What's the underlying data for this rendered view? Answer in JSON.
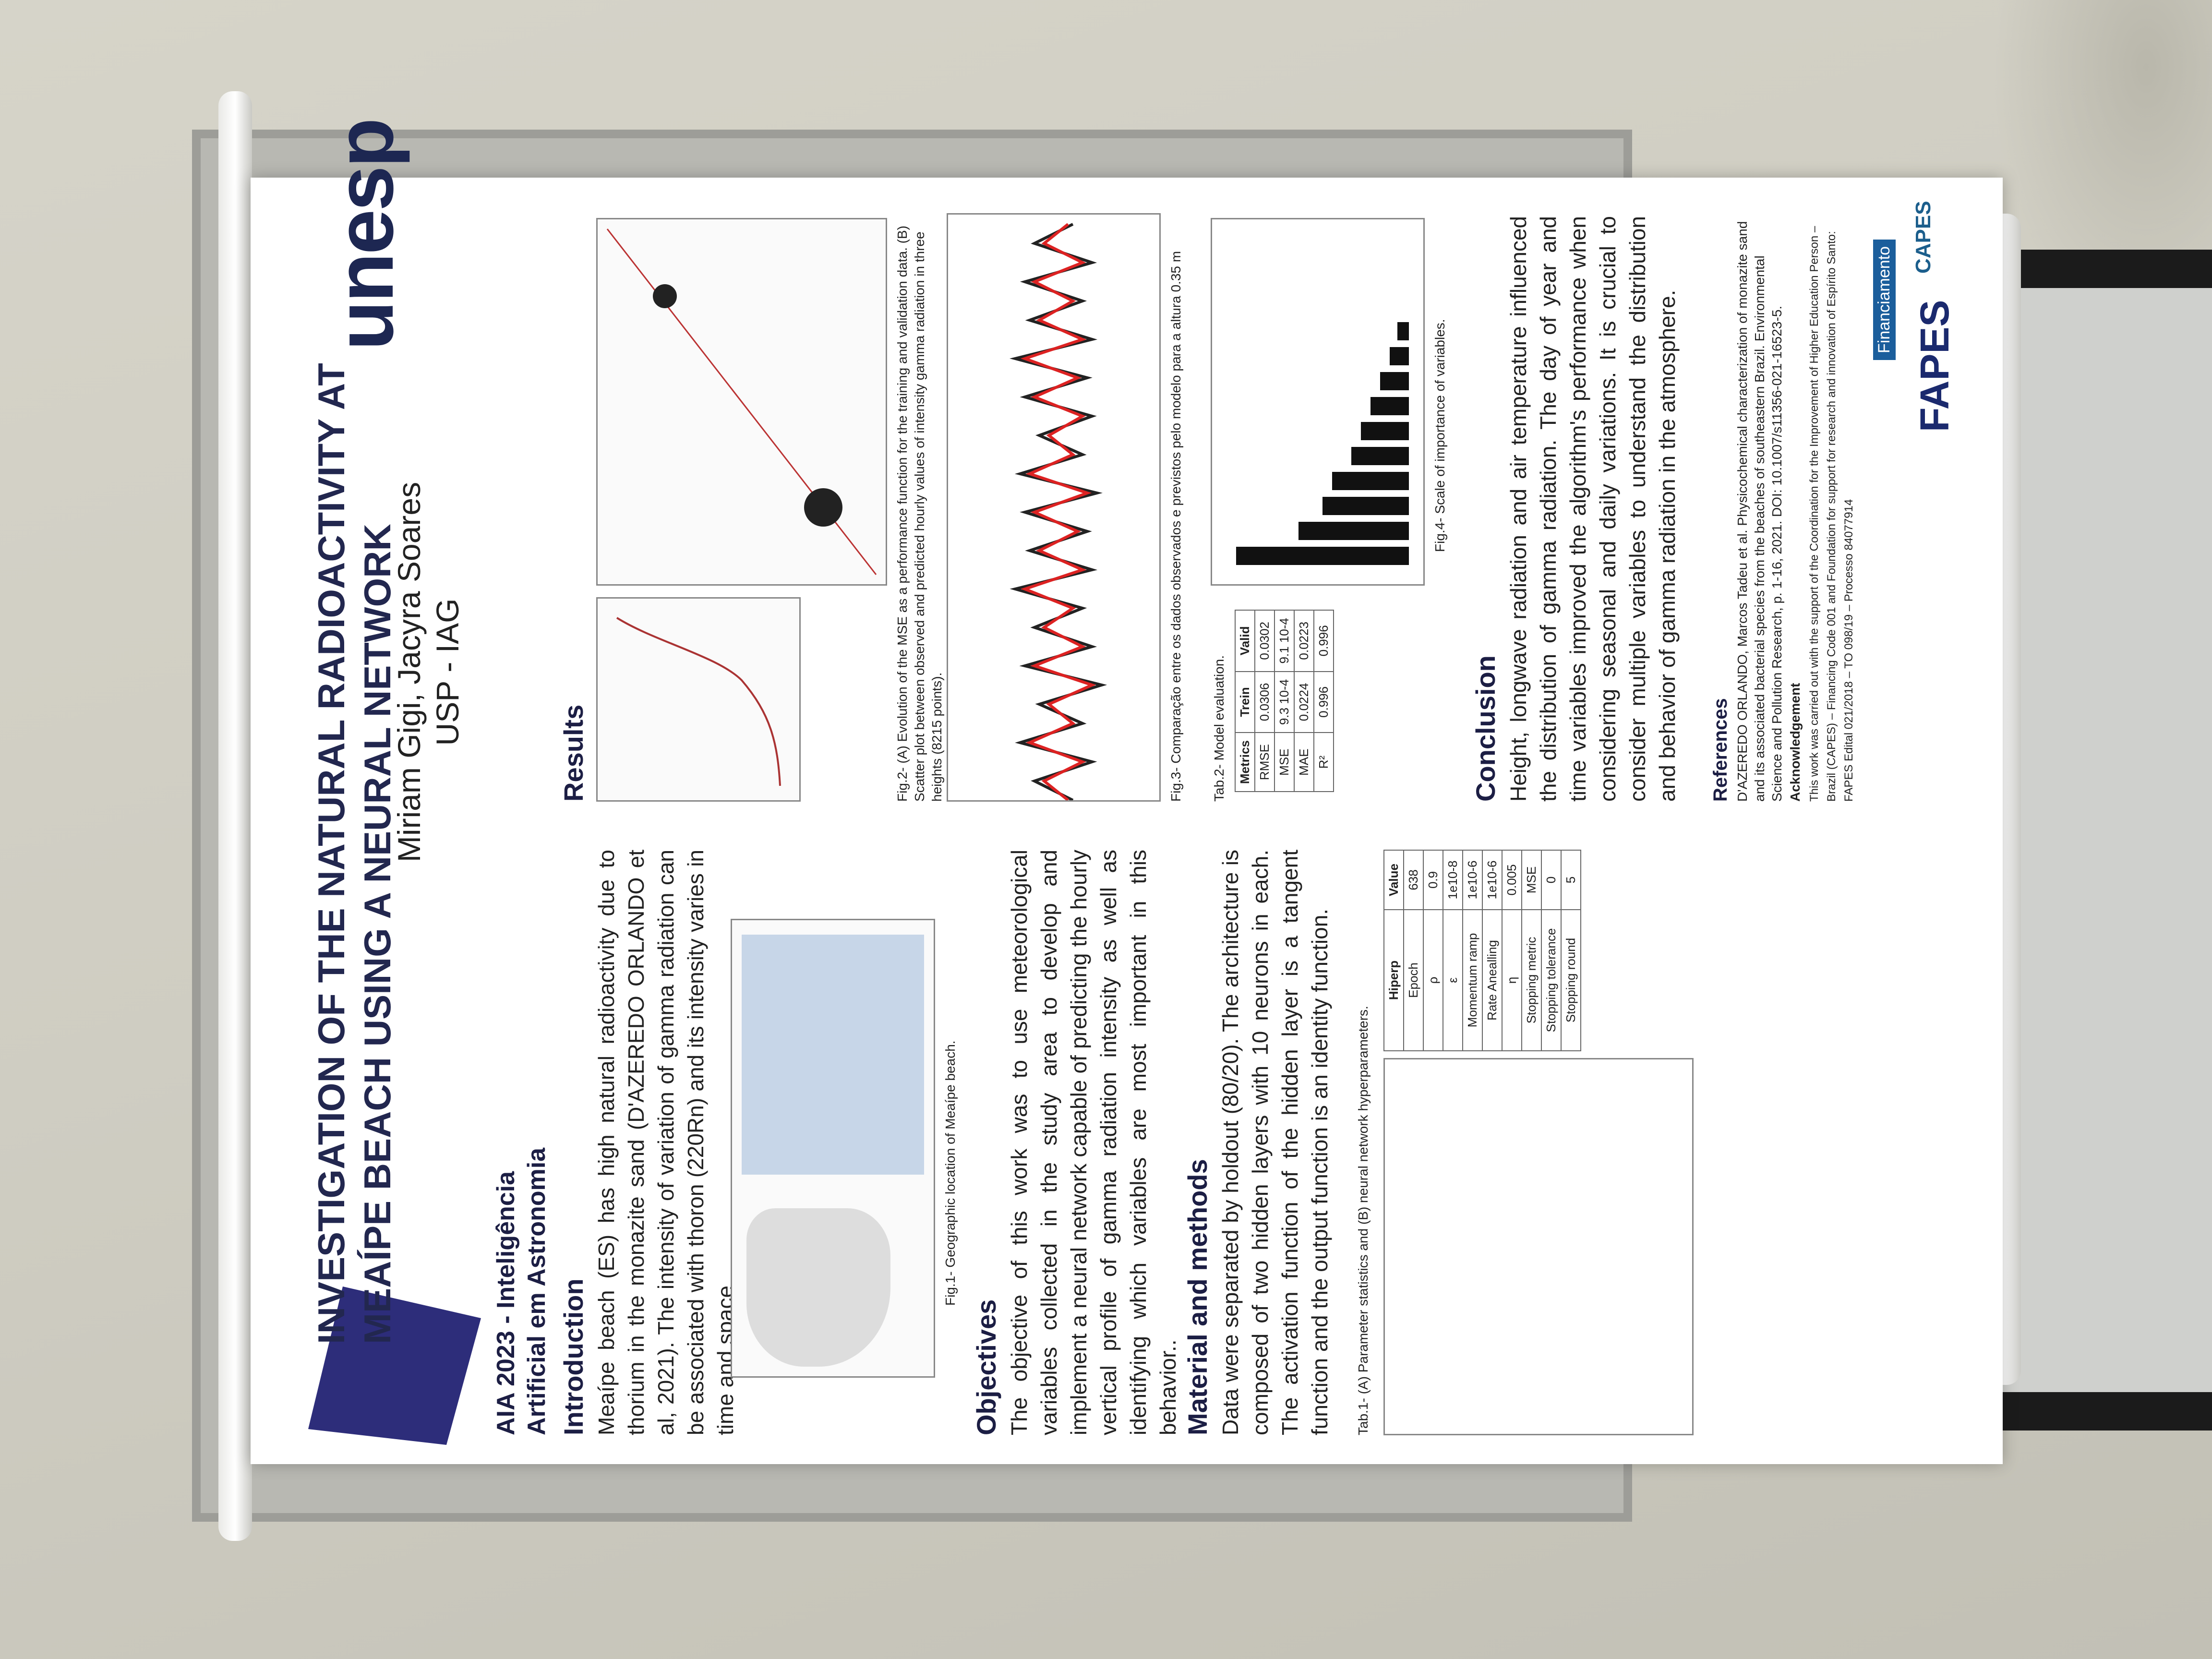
{
  "poster": {
    "title": "INVESTIGATION OF THE NATURAL RADIOACTIVITY AT MEAÍPE BEACH USING A NEURAL NETWORK",
    "authors": "Miriam Gigi, Jacyra Soares",
    "affiliation": "USP - IAG",
    "conference": "AIA 2023 - Inteligência Artificial em Astronomia",
    "logo": "unesp",
    "intro_heading": "Introduction",
    "intro_text": "Meaípe beach (ES) has high natural radioactivity due to thorium in the monazite sand (D'AZEREDO ORLANDO et al, 2021). The intensity of variation of gamma radiation can be associated with thoron (220Rn) and its intensity varies in time and space.",
    "fig1_caption": "Fig.1- Geographic location of Meaípe beach.",
    "objectives_heading": "Objectives",
    "objectives_text": "The objective of this work was to use meteorological variables collected in the study area to develop and implement a neural network capable of predicting the hourly vertical profile of gamma radiation intensity as well as identifying which variables are most important in this behavior..",
    "methods_heading": "Material and methods",
    "methods_text": "Data were separated by holdout (80/20). The architecture is composed of two hidden layers with 10 neurons in each. The activation function of the hidden layer is a tangent function and the output function is an identity function.",
    "tab1_caption": "Tab.1- (A) Parameter statistics and (B) neural network hyperparameters.",
    "results_heading": "Results",
    "fig2_caption": "Fig.2- (A) Evolution of the MSE as a performance function for the training and validation data. (B) Scatter plot between observed and predicted hourly values of intensity gamma radiation in three heights (8215 points).",
    "fig3_caption": "Fig.3- Comparação entre os dados observados e previstos pelo modelo para a altura 0.35 m",
    "tab2_caption": "Tab.2- Model evaluation.",
    "fig4_caption": "Fig.4- Scale of importance of variables.",
    "conclusion_heading": "Conclusion",
    "conclusion_text": "Height, longwave radiation and air temperature influenced the distribution of gamma radiation. The day of year and time variables improved the algorithm's performance when considering seasonal and daily variations. It is crucial to consider multiple variables to understand the distribution and behavior of gamma radiation in the atmosphere.",
    "references_heading": "References",
    "references_text": "D'AZEREDO ORLANDO, Marcos Tadeu et al. Physicochemical characterization of monazite sand and its associated bacterial species from the beaches of southeastern Brazil. Environmental Science and Pollution Research, p. 1-16, 2021. DOI: 10.1007/s11356-021-16523-5.",
    "ack_heading": "Acknowledgement",
    "ack_text": "This work was carried out with the support of the Coordination for the Improvement of Higher Education Person – Brazil (CAPES) – Financing Code 001 and Foundation for support for research and innovation of Espírito Santo: FAPES Edital 021/2018 – TO 098/19 – Processo 84077914",
    "funding": "Financiamento",
    "fapes": "FAPES",
    "capes": "CAPES"
  },
  "tab2": {
    "headers": [
      "Metrics",
      "Trein",
      "Valid"
    ],
    "rows": [
      [
        "RMSE",
        "0.0306",
        "0.0302"
      ],
      [
        "MSE",
        "9.3 10-4",
        "9.1 10-4"
      ],
      [
        "MAE",
        "0.0224",
        "0.0223"
      ],
      [
        "R²",
        "0.996",
        "0.996"
      ]
    ]
  },
  "tab1b": {
    "headers": [
      "Hiperp",
      "Value"
    ],
    "rows": [
      [
        "Epoch",
        "638"
      ],
      [
        "ρ",
        "0.9"
      ],
      [
        "ε",
        "1e10-8"
      ],
      [
        "Momentum ramp",
        "1e10-6"
      ],
      [
        "Rate Anealling",
        "1e10-6"
      ],
      [
        "η",
        "0.005"
      ],
      [
        "Stopping metric",
        "MSE"
      ],
      [
        "Stopping tolerance",
        "0"
      ],
      [
        "Stopping round",
        "5"
      ]
    ]
  }
}
